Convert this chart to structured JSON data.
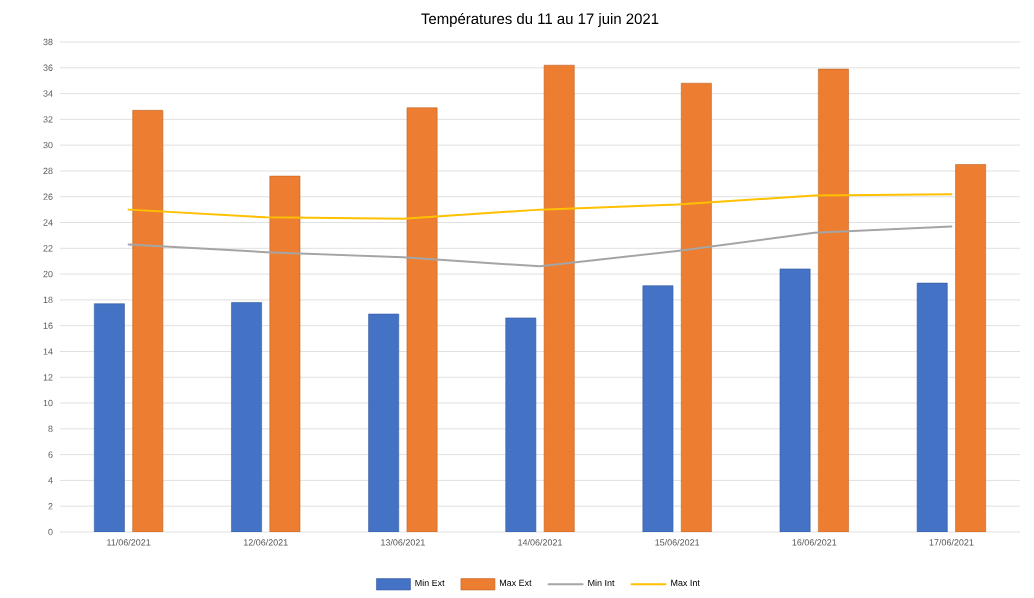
{
  "chart_data": {
    "type": "bar",
    "title": "Températures du 11 au 17 juin 2021",
    "categories": [
      "11/06/2021",
      "12/06/2021",
      "13/06/2021",
      "14/06/2021",
      "15/06/2021",
      "16/06/2021",
      "17/06/2021"
    ],
    "series": [
      {
        "name": "Min Ext",
        "color": "#4472c4",
        "values": [
          17.7,
          17.8,
          16.9,
          16.6,
          19.1,
          20.4,
          19.3
        ]
      },
      {
        "name": "Max Ext",
        "color": "#ed7d31",
        "values": [
          32.7,
          27.6,
          32.9,
          36.2,
          34.8,
          35.9,
          28.5
        ]
      },
      {
        "name": "Min Int",
        "type": "line",
        "color": "#a5a5a5",
        "values": [
          22.3,
          21.7,
          21.3,
          20.6,
          21.8,
          23.2,
          23.7
        ]
      },
      {
        "name": "Max Int",
        "type": "line",
        "color": "#ffc000",
        "values": [
          25.0,
          24.4,
          24.3,
          25.0,
          25.4,
          26.1,
          26.2
        ]
      }
    ],
    "ylim": [
      0,
      38
    ],
    "yticks": [
      0,
      2,
      4,
      6,
      8,
      10,
      12,
      14,
      16,
      18,
      20,
      22,
      24,
      26,
      28,
      30,
      32,
      34,
      36,
      38
    ],
    "grid": "y",
    "legend": "bottom"
  }
}
